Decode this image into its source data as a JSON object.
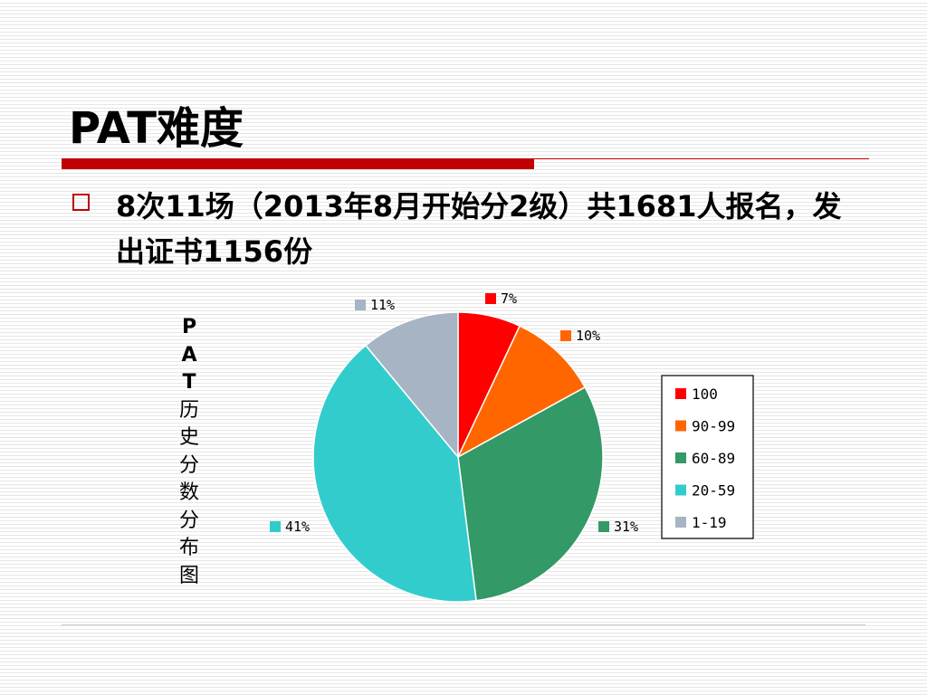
{
  "slide": {
    "title": "PAT难度",
    "bullet": "8次11场（2013年8月开始分2级）共1681人报名，发出证书1156份",
    "vertical_label": [
      "P",
      "A",
      "T",
      "历",
      "史",
      "分",
      "数",
      "分",
      "布",
      "图"
    ]
  },
  "colors": {
    "accent": "#c00000"
  },
  "chart_data": {
    "type": "pie",
    "categories": [
      "100",
      "90-99",
      "60-89",
      "20-59",
      "1-19"
    ],
    "values": [
      7,
      10,
      31,
      41,
      11
    ],
    "data_labels": [
      "7%",
      "10%",
      "31%",
      "41%",
      "11%"
    ],
    "colors": [
      "#ff0000",
      "#ff6600",
      "#339966",
      "#33cccc",
      "#a6b4c4"
    ],
    "legend_position": "right",
    "start": "12 o'clock, clockwise"
  }
}
